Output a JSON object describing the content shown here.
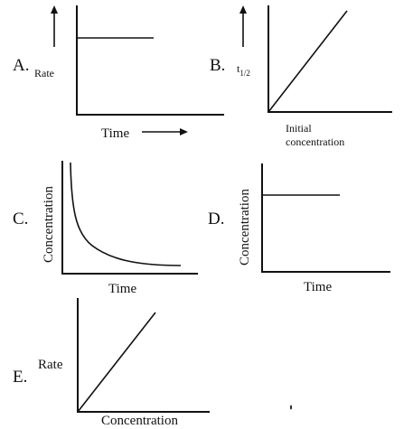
{
  "panels": [
    {
      "letter": "A.",
      "y_label": "Rate",
      "x_label": "Time",
      "plot": {
        "type": "line",
        "shape": "horizontal",
        "trend": "constant"
      }
    },
    {
      "letter": "B.",
      "y_label": "t",
      "y_label_sub": "1/2",
      "x_label_lines": [
        "Initial",
        "concentration"
      ],
      "plot": {
        "type": "line",
        "shape": "straight line through origin",
        "trend": "increasing"
      }
    },
    {
      "letter": "C.",
      "y_label": "Concentration",
      "x_label": "Time",
      "plot": {
        "type": "line",
        "shape": "curve",
        "trend": "decreasing"
      }
    },
    {
      "letter": "D.",
      "y_label": "Concentration",
      "x_label": "Time",
      "plot": {
        "type": "line",
        "shape": "horizontal",
        "trend": "constant"
      }
    },
    {
      "letter": "E.",
      "y_label": "Rate",
      "x_label": "Concentration",
      "plot": {
        "type": "line",
        "shape": "straight line through origin",
        "trend": "increasing"
      }
    }
  ],
  "colors": {
    "ink": "#111111",
    "background": "#ffffff"
  }
}
